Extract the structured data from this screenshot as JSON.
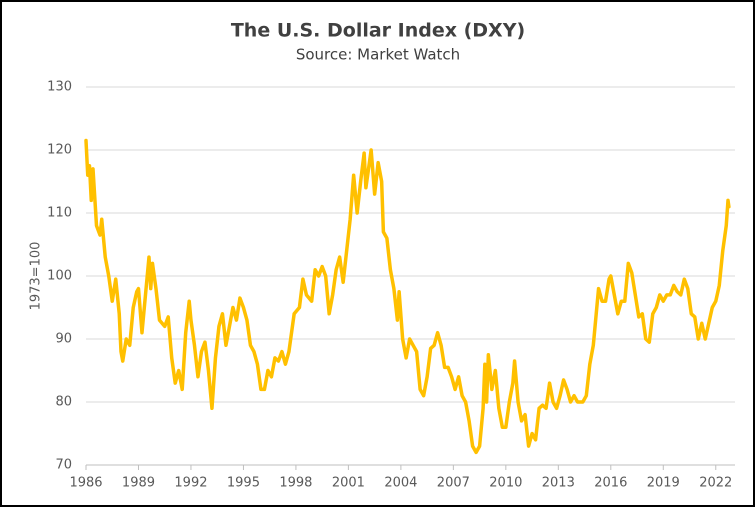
{
  "chart_data": {
    "type": "line",
    "title": "The U.S. Dollar Index (DXY)",
    "subtitle": "Source: Market Watch",
    "ylabel": "1973=100",
    "x": [
      1986.0,
      1986.1,
      1986.2,
      1986.3,
      1986.4,
      1986.6,
      1986.8,
      1986.9,
      1987.1,
      1987.3,
      1987.5,
      1987.7,
      1987.9,
      1988.0,
      1988.1,
      1988.3,
      1988.5,
      1988.7,
      1988.9,
      1989.0,
      1989.2,
      1989.4,
      1989.6,
      1989.7,
      1989.8,
      1990.0,
      1990.2,
      1990.5,
      1990.7,
      1990.9,
      1991.1,
      1991.3,
      1991.5,
      1991.7,
      1991.9,
      1992.0,
      1992.2,
      1992.4,
      1992.6,
      1992.8,
      1993.0,
      1993.2,
      1993.4,
      1993.6,
      1993.8,
      1994.0,
      1994.2,
      1994.4,
      1994.6,
      1994.8,
      1995.0,
      1995.2,
      1995.4,
      1995.6,
      1995.8,
      1996.0,
      1996.2,
      1996.4,
      1996.6,
      1996.8,
      1997.0,
      1997.2,
      1997.4,
      1997.6,
      1997.9,
      1998.2,
      1998.4,
      1998.6,
      1998.9,
      1999.1,
      1999.3,
      1999.5,
      1999.7,
      1999.9,
      2000.1,
      2000.3,
      2000.5,
      2000.7,
      2000.9,
      2001.1,
      2001.3,
      2001.5,
      2001.7,
      2001.9,
      2002.0,
      2002.1,
      2002.3,
      2002.5,
      2002.7,
      2002.9,
      2003.0,
      2003.2,
      2003.4,
      2003.6,
      2003.8,
      2003.9,
      2004.1,
      2004.3,
      2004.5,
      2004.7,
      2004.9,
      2005.1,
      2005.3,
      2005.5,
      2005.7,
      2005.9,
      2006.1,
      2006.3,
      2006.5,
      2006.7,
      2006.9,
      2007.1,
      2007.3,
      2007.5,
      2007.7,
      2007.9,
      2008.1,
      2008.3,
      2008.5,
      2008.7,
      2008.8,
      2008.9,
      2009.0,
      2009.2,
      2009.4,
      2009.6,
      2009.8,
      2010.0,
      2010.2,
      2010.4,
      2010.5,
      2010.7,
      2010.9,
      2011.1,
      2011.3,
      2011.5,
      2011.7,
      2011.9,
      2012.1,
      2012.3,
      2012.5,
      2012.7,
      2012.9,
      2013.1,
      2013.3,
      2013.5,
      2013.7,
      2013.9,
      2014.1,
      2014.4,
      2014.6,
      2014.8,
      2015.0,
      2015.2,
      2015.3,
      2015.5,
      2015.7,
      2015.9,
      2016.0,
      2016.2,
      2016.4,
      2016.6,
      2016.8,
      2017.0,
      2017.2,
      2017.4,
      2017.6,
      2017.8,
      2018.0,
      2018.2,
      2018.4,
      2018.6,
      2018.8,
      2019.0,
      2019.2,
      2019.4,
      2019.6,
      2019.8,
      2020.0,
      2020.2,
      2020.4,
      2020.6,
      2020.8,
      2021.0,
      2021.2,
      2021.4,
      2021.6,
      2021.8,
      2022.0,
      2022.2,
      2022.4,
      2022.6,
      2022.7,
      2022.75
    ],
    "series": [
      {
        "color": "#ffc000",
        "values": [
          121.5,
          116,
          117.5,
          112,
          117,
          108,
          106.5,
          109,
          103,
          100,
          96,
          99.5,
          94,
          88,
          86.5,
          90,
          89,
          95,
          97.5,
          98,
          91,
          97,
          103,
          98,
          102,
          98,
          93,
          92,
          93.5,
          87,
          83,
          85,
          82,
          91,
          96,
          93,
          89,
          84,
          88,
          89.5,
          85,
          79,
          87,
          92,
          94,
          89,
          92,
          95,
          93,
          96.5,
          95,
          93,
          89,
          88,
          86,
          82,
          82,
          85,
          84,
          87,
          86.5,
          88,
          86,
          88,
          94,
          95,
          99.5,
          97,
          96,
          101,
          100,
          101.5,
          100,
          94,
          97,
          101,
          103,
          99,
          104,
          109,
          116,
          110,
          115,
          119.5,
          114,
          116,
          120,
          113,
          118,
          115,
          107,
          106,
          101,
          98,
          93,
          97.5,
          90,
          87,
          90,
          89,
          88,
          82,
          81,
          84,
          88.5,
          89,
          91,
          89,
          85.5,
          85.5,
          84,
          82,
          84,
          81,
          80,
          77,
          73,
          72,
          73,
          79,
          86,
          80,
          87.5,
          82,
          85,
          79,
          76,
          76,
          80,
          83,
          86.5,
          80,
          77,
          78,
          73,
          75,
          74,
          79,
          79.5,
          79,
          83,
          80,
          79,
          81,
          83.5,
          82,
          80,
          81,
          80,
          80,
          81,
          86,
          89,
          95,
          98,
          96,
          96,
          99.5,
          100,
          97,
          94,
          96,
          96,
          102,
          100.5,
          97,
          93.5,
          94,
          90,
          89.5,
          94,
          95,
          97,
          96,
          97,
          97,
          98.5,
          97.5,
          97,
          99.5,
          98,
          94,
          93.5,
          90,
          92.5,
          90,
          92.5,
          95,
          96,
          98.5,
          104,
          108,
          112,
          111
        ]
      }
    ],
    "xlim": [
      1986,
      2023.1
    ],
    "xticks": [
      1986,
      1989,
      1992,
      1995,
      1998,
      2001,
      2004,
      2007,
      2010,
      2013,
      2016,
      2019,
      2022
    ],
    "ylim": [
      70,
      130
    ],
    "yticks": [
      70,
      80,
      90,
      100,
      110,
      120,
      130
    ],
    "grid": true
  }
}
